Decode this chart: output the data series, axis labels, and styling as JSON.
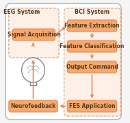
{
  "bg_color": "#f5f5f5",
  "outer_box_color": "#cccccc",
  "box_fill": "#f5a96e",
  "box_edge": "#e8895a",
  "section_bg": "#fdf0e6",
  "section_edge": "#d4a080",
  "arrow_color": "#e8895a",
  "text_color": "#5a3a1a",
  "title_color": "#5a3a1a",
  "eeg_label": "EEG System",
  "bci_label": "BCI System",
  "boxes": [
    "Signal Acquisition",
    "Feature Extraction",
    "Feature Classification",
    "Output Command",
    "FES Application",
    "Neurofeedback"
  ],
  "font_size_box": 5.5,
  "font_size_label": 5.8
}
